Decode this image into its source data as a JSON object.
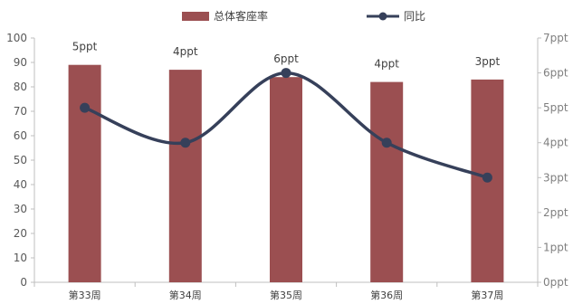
{
  "chart_data": {
    "type": "bar",
    "categories": [
      "第33周",
      "第34周",
      "第35周",
      "第36周",
      "第37周"
    ],
    "series": [
      {
        "name": "总体客座率",
        "kind": "bar",
        "axis": "left",
        "values": [
          89,
          87,
          84,
          82,
          83
        ],
        "color": "#9b4f51"
      },
      {
        "name": "同比",
        "kind": "line",
        "axis": "right",
        "smooth": true,
        "values": [
          5,
          4,
          6,
          4,
          3
        ],
        "labels": [
          "5ppt",
          "4ppt",
          "6ppt",
          "4ppt",
          "3ppt"
        ],
        "color": "#36405a"
      }
    ],
    "y_left": {
      "ylim": [
        0,
        100
      ],
      "ticks": [
        "0",
        "10",
        "20",
        "30",
        "40",
        "50",
        "60",
        "70",
        "80",
        "90",
        "100"
      ]
    },
    "y_right": {
      "ylim": [
        0,
        7
      ],
      "ticks": [
        "0ppt",
        "1ppt",
        "2ppt",
        "3ppt",
        "4ppt",
        "5ppt",
        "6ppt",
        "7ppt"
      ]
    },
    "legend_position": "top-center",
    "grid": false
  }
}
